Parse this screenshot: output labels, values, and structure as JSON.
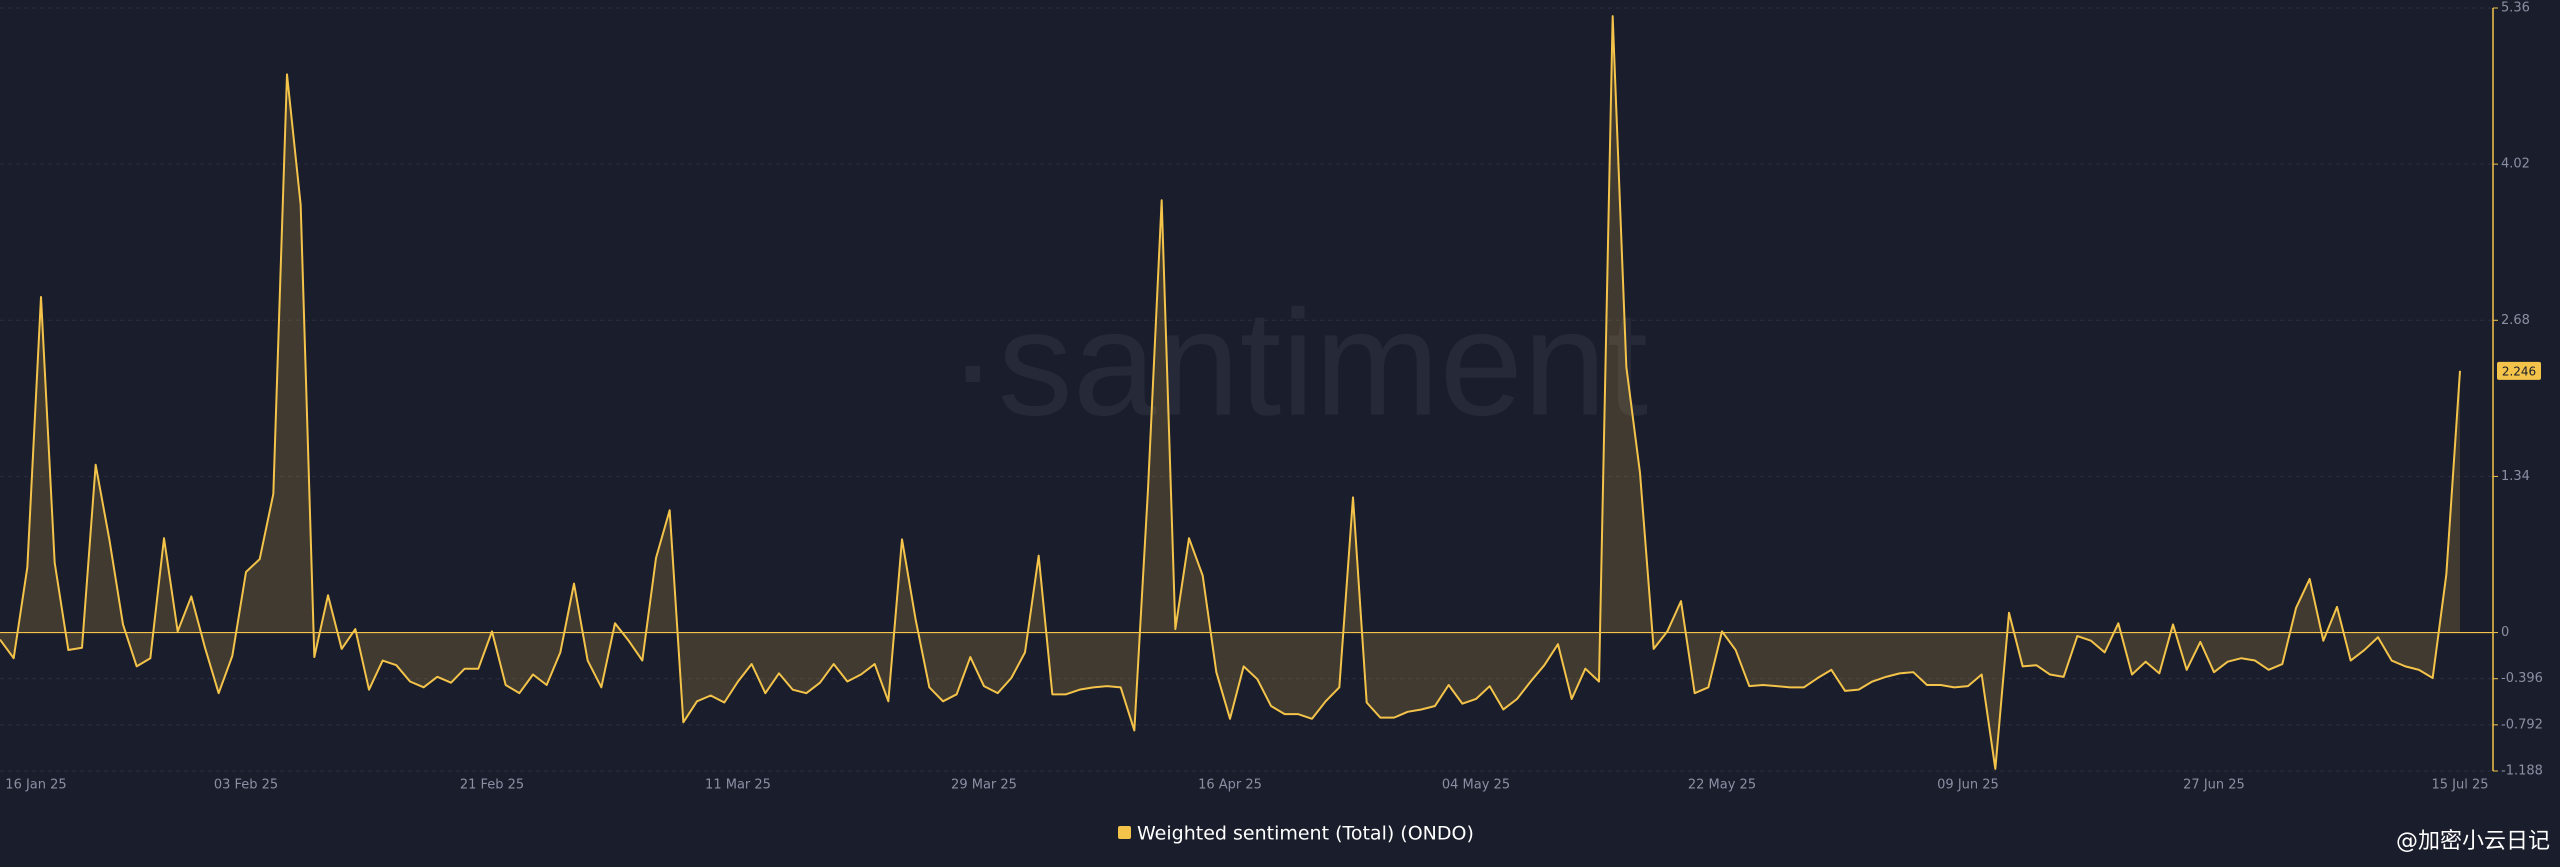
{
  "chart_data": {
    "type": "line",
    "watermark": "·santiment",
    "attribution": "@加密小云日记",
    "categories": [
      "16 Jan 25",
      null,
      null,
      null,
      null,
      null,
      null,
      null,
      null,
      null,
      null,
      null,
      null,
      null,
      null,
      null,
      null,
      null,
      "03 Feb 25",
      null,
      null,
      null,
      null,
      null,
      null,
      null,
      null,
      null,
      null,
      null,
      null,
      null,
      null,
      null,
      null,
      null,
      "21 Feb 25",
      null,
      null,
      null,
      null,
      null,
      null,
      null,
      null,
      null,
      null,
      null,
      null,
      null,
      null,
      null,
      null,
      null,
      "11 Mar 25",
      null,
      null,
      null,
      null,
      null,
      null,
      null,
      null,
      null,
      null,
      null,
      null,
      null,
      null,
      null,
      null,
      null,
      "29 Mar 25",
      null,
      null,
      null,
      null,
      null,
      null,
      null,
      null,
      null,
      null,
      null,
      null,
      null,
      null,
      null,
      null,
      null,
      "16 Apr 25",
      null,
      null,
      null,
      null,
      null,
      null,
      null,
      null,
      null,
      null,
      null,
      null,
      null,
      null,
      null,
      null,
      null,
      "04 May 25",
      null,
      null,
      null,
      null,
      null,
      null,
      null,
      null,
      null,
      null,
      null,
      null,
      null,
      null,
      null,
      null,
      null,
      "22 May 25",
      null,
      null,
      null,
      null,
      null,
      null,
      null,
      null,
      null,
      null,
      null,
      null,
      null,
      null,
      null,
      null,
      null,
      "09 Jun 25",
      null,
      null,
      null,
      null,
      null,
      null,
      null,
      null,
      null,
      null,
      null,
      null,
      null,
      null,
      null,
      null,
      null,
      "27 Jun 25",
      null,
      null,
      null,
      null,
      null,
      null,
      null,
      null,
      null,
      null,
      null,
      null,
      null,
      null,
      null,
      null,
      null,
      "15 Jul 25"
    ],
    "series": [
      {
        "name": "Weighted sentiment (Total) (ONDO)",
        "color": "#f3c34a",
        "values": [
          -0.06,
          -0.22,
          0.56,
          2.88,
          0.6,
          -0.15,
          -0.13,
          1.44,
          0.8,
          0.07,
          -0.29,
          -0.22,
          0.81,
          0.01,
          0.31,
          -0.13,
          -0.52,
          -0.2,
          0.52,
          0.63,
          1.19,
          4.79,
          3.67,
          -0.21,
          0.32,
          -0.14,
          0.03,
          -0.49,
          -0.24,
          -0.28,
          -0.42,
          -0.47,
          -0.38,
          -0.43,
          -0.31,
          -0.31,
          0.01,
          -0.45,
          -0.52,
          -0.36,
          -0.45,
          -0.17,
          0.42,
          -0.24,
          -0.47,
          0.08,
          -0.07,
          -0.24,
          0.64,
          1.05,
          -0.77,
          -0.59,
          -0.54,
          -0.6,
          -0.42,
          -0.27,
          -0.52,
          -0.35,
          -0.49,
          -0.52,
          -0.43,
          -0.27,
          -0.42,
          -0.36,
          -0.27,
          -0.59,
          0.8,
          0.11,
          -0.47,
          -0.59,
          -0.53,
          -0.21,
          -0.46,
          -0.52,
          -0.39,
          -0.17,
          0.66,
          -0.53,
          -0.53,
          -0.49,
          -0.47,
          -0.46,
          -0.47,
          -0.84,
          1.23,
          3.71,
          0.03,
          0.81,
          0.49,
          -0.34,
          -0.74,
          -0.29,
          -0.4,
          -0.63,
          -0.7,
          -0.7,
          -0.74,
          -0.59,
          -0.47,
          1.16,
          -0.6,
          -0.73,
          -0.73,
          -0.68,
          -0.66,
          -0.63,
          -0.45,
          -0.61,
          -0.57,
          -0.46,
          -0.66,
          -0.57,
          -0.42,
          -0.28,
          -0.1,
          -0.57,
          -0.31,
          -0.42,
          5.29,
          2.28,
          1.37,
          -0.14,
          0.01,
          0.27,
          -0.52,
          -0.47,
          0.01,
          -0.15,
          -0.46,
          -0.45,
          -0.46,
          -0.47,
          -0.47,
          -0.39,
          -0.32,
          -0.5,
          -0.49,
          -0.42,
          -0.38,
          -0.35,
          -0.34,
          -0.45,
          -0.45,
          -0.47,
          -0.46,
          -0.36,
          -1.17,
          0.17,
          -0.29,
          -0.28,
          -0.36,
          -0.38,
          -0.03,
          -0.07,
          -0.17,
          0.08,
          -0.36,
          -0.25,
          -0.35,
          0.07,
          -0.32,
          -0.08,
          -0.34,
          -0.25,
          -0.22,
          -0.24,
          -0.32,
          -0.27,
          0.21,
          0.46,
          -0.07,
          0.22,
          -0.24,
          -0.15,
          -0.04,
          -0.24,
          -0.29,
          -0.32,
          -0.39,
          0.5,
          2.246
        ]
      }
    ],
    "ylim": [
      -1.188,
      5.36
    ],
    "yticks": [
      -1.188,
      -0.792,
      -0.396,
      0,
      1.34,
      2.68,
      4.02,
      5.36
    ],
    "grid": true
  }
}
